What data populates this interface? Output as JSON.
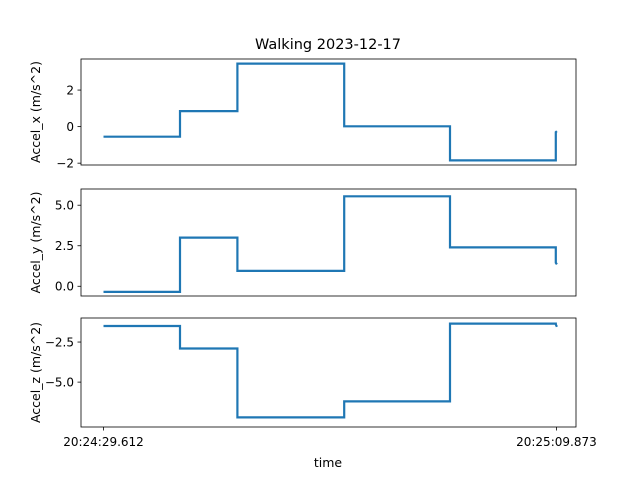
{
  "chart_data": {
    "type": "line",
    "title": "Walking  2023-12-17",
    "xlabel": "time",
    "x_tick_labels": [
      "20:24:29.612",
      "20:25:09.873"
    ],
    "series_color": "#1f77b4",
    "subplots": [
      {
        "ylabel": "Accel_x  (m/s^2)",
        "ylim": [
          -2.1,
          3.7
        ],
        "yticks": [
          2,
          0,
          -2
        ],
        "ytick_labels": [
          "2",
          "0",
          "−2"
        ],
        "x": [
          0.0,
          6.8,
          6.8,
          11.9,
          11.9,
          21.4,
          21.4,
          30.8,
          30.8,
          40.2,
          40.2,
          40.3
        ],
        "y": [
          -0.55,
          -0.55,
          0.85,
          0.85,
          3.45,
          3.45,
          0.02,
          0.02,
          -1.85,
          -1.85,
          -0.3,
          -0.25
        ]
      },
      {
        "ylabel": "Accel_y  (m/s^2)",
        "ylim": [
          -0.6,
          6.0
        ],
        "yticks": [
          5.0,
          2.5,
          0.0
        ],
        "ytick_labels": [
          "5.0",
          "2.5",
          "0.0"
        ],
        "x": [
          0.0,
          6.8,
          6.8,
          11.9,
          11.9,
          21.4,
          21.4,
          30.8,
          30.8,
          40.2,
          40.2,
          40.3
        ],
        "y": [
          -0.35,
          -0.35,
          3.0,
          3.0,
          0.95,
          0.95,
          5.55,
          5.55,
          2.4,
          2.4,
          1.45,
          1.35
        ]
      },
      {
        "ylabel": "Accel_z  (m/s^2)",
        "ylim": [
          -7.8,
          -1.0
        ],
        "yticks": [
          -2.5,
          -5.0
        ],
        "ytick_labels": [
          "−2.5",
          "−5.0"
        ],
        "x": [
          0.0,
          6.8,
          6.8,
          11.9,
          11.9,
          21.4,
          21.4,
          30.8,
          30.8,
          40.2,
          40.2,
          40.3
        ],
        "y": [
          -1.5,
          -1.5,
          -2.9,
          -2.9,
          -7.2,
          -7.2,
          -6.2,
          -6.2,
          -1.35,
          -1.35,
          -1.4,
          -1.55
        ]
      }
    ],
    "xlim": [
      -2.0,
      42.0
    ],
    "xticks": [
      0.0,
      40.261
    ]
  }
}
